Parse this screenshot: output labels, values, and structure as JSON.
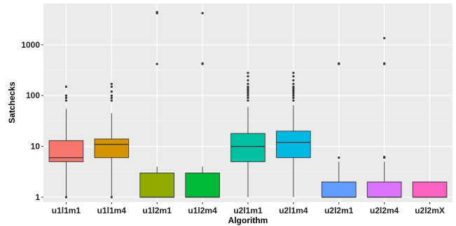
{
  "chart_data": {
    "type": "box",
    "xlabel": "Algorithm",
    "ylabel": "Satchecks",
    "y_scale": "log10",
    "y_ticks": [
      1,
      10,
      100,
      1000
    ],
    "y_tick_labels": [
      "1",
      "10",
      "100",
      "1000"
    ],
    "ylim": [
      0.8,
      6500
    ],
    "grid": true,
    "legend": "none",
    "categories": [
      "u1l1m1",
      "u1l1m4",
      "u1l2m1",
      "u1l2m4",
      "u2l1m1",
      "u2l1m4",
      "u2l2m1",
      "u2l2m4",
      "u2l2mX"
    ],
    "colors": [
      "#F8766D",
      "#D39200",
      "#93AA00",
      "#00BA38",
      "#00C19F",
      "#00B9E3",
      "#619CFF",
      "#DB72FB",
      "#FF61C3"
    ],
    "boxes": [
      {
        "min": 1,
        "q1": 5,
        "median": 6,
        "q3": 13,
        "max": 55,
        "outliers": [
          1,
          80,
          90,
          100,
          150
        ]
      },
      {
        "min": 1,
        "q1": 6,
        "median": 11,
        "q3": 14,
        "max": 45,
        "outliers": [
          1,
          80,
          90,
          100,
          120,
          150,
          170
        ]
      },
      {
        "min": 1,
        "q1": 1,
        "median": 1,
        "q3": 3,
        "max": 4,
        "outliers": [
          420,
          4200,
          4400
        ]
      },
      {
        "min": 1,
        "q1": 1,
        "median": 1,
        "q3": 3,
        "max": 4,
        "outliers": [
          420,
          430,
          4200
        ]
      },
      {
        "min": 1,
        "q1": 5,
        "median": 10,
        "q3": 18,
        "max": 60,
        "outliers": [
          80,
          90,
          100,
          110,
          120,
          130,
          140,
          150,
          170,
          200,
          240,
          280
        ]
      },
      {
        "min": 1,
        "q1": 6,
        "median": 12,
        "q3": 20,
        "max": 65,
        "outliers": [
          80,
          90,
          100,
          110,
          120,
          130,
          140,
          150,
          170,
          200,
          240,
          280
        ]
      },
      {
        "min": 1,
        "q1": 1,
        "median": 1,
        "q3": 2,
        "max": 5,
        "outliers": [
          6,
          420,
          430
        ]
      },
      {
        "min": 1,
        "q1": 1,
        "median": 1,
        "q3": 2,
        "max": 5,
        "outliers": [
          6,
          6.2,
          420,
          430,
          1350
        ]
      },
      {
        "min": 1,
        "q1": 1,
        "median": 1,
        "q3": 2,
        "max": 2,
        "outliers": []
      }
    ]
  }
}
